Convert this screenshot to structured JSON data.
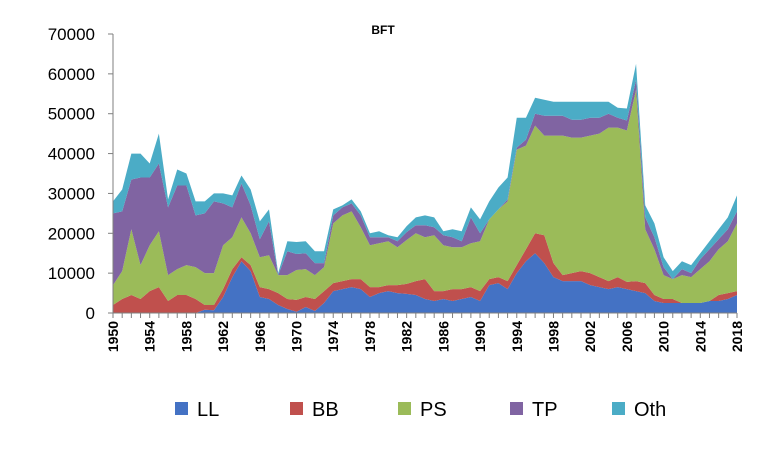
{
  "chart_data": {
    "type": "area",
    "stacked": true,
    "title": "BFT",
    "xlabel": "",
    "ylabel": "",
    "ylim": [
      0,
      70000
    ],
    "yticks": [
      0,
      10000,
      20000,
      30000,
      40000,
      50000,
      60000,
      70000
    ],
    "ytick_labels": [
      "0",
      "10000",
      "20000",
      "30000",
      "40000",
      "50000",
      "60000",
      "70000"
    ],
    "xlim": [
      1950,
      2018
    ],
    "xticks": [
      1950,
      1954,
      1958,
      1962,
      1966,
      1970,
      1974,
      1978,
      1982,
      1986,
      1990,
      1994,
      1998,
      2002,
      2006,
      2010,
      2014,
      2018
    ],
    "grid": false,
    "legend_position": "bottom",
    "x": [
      1950,
      1951,
      1952,
      1953,
      1954,
      1955,
      1956,
      1957,
      1958,
      1959,
      1960,
      1961,
      1962,
      1963,
      1964,
      1965,
      1966,
      1967,
      1968,
      1969,
      1970,
      1971,
      1972,
      1973,
      1974,
      1975,
      1976,
      1977,
      1978,
      1979,
      1980,
      1981,
      1982,
      1983,
      1984,
      1985,
      1986,
      1987,
      1988,
      1989,
      1990,
      1991,
      1992,
      1993,
      1994,
      1995,
      1996,
      1997,
      1998,
      1999,
      2000,
      2001,
      2002,
      2003,
      2004,
      2005,
      2006,
      2007,
      2008,
      2009,
      2010,
      2011,
      2012,
      2013,
      2014,
      2015,
      2016,
      2017,
      2018
    ],
    "series": [
      {
        "name": "LL",
        "color": "#4472C4",
        "values": [
          0,
          0,
          0,
          0,
          0,
          0,
          0,
          0,
          0,
          0,
          800,
          700,
          4000,
          9000,
          13000,
          10500,
          4000,
          3500,
          2000,
          1000,
          300,
          1500,
          500,
          2500,
          5500,
          6000,
          6500,
          6000,
          4000,
          5000,
          5500,
          5000,
          4800,
          4500,
          3500,
          3000,
          3500,
          3000,
          3500,
          4000,
          3000,
          7000,
          7500,
          6000,
          10000,
          13000,
          15000,
          12500,
          9000,
          8000,
          8000,
          8000,
          7000,
          6500,
          6000,
          6500,
          6000,
          5500,
          5000,
          3000,
          2500,
          2500,
          2500,
          2500,
          2500,
          3000,
          3000,
          3500,
          4500
        ]
      },
      {
        "name": "BB",
        "color": "#C0504D",
        "values": [
          2000,
          3500,
          4500,
          3500,
          5500,
          6500,
          3000,
          4500,
          4500,
          3500,
          1200,
          1300,
          2000,
          2000,
          1000,
          1500,
          2500,
          2500,
          3000,
          2500,
          3000,
          2500,
          3000,
          3000,
          2000,
          2000,
          2000,
          2500,
          2500,
          1500,
          1500,
          2000,
          2500,
          3500,
          5000,
          2500,
          2000,
          3000,
          2500,
          2500,
          2500,
          1500,
          1500,
          2000,
          2000,
          3000,
          5000,
          7000,
          3500,
          1500,
          2000,
          2500,
          3000,
          2500,
          2000,
          2500,
          1800,
          2500,
          2500,
          1500,
          1000,
          1000,
          0,
          0,
          0,
          0,
          1500,
          1500,
          1000
        ]
      },
      {
        "name": "PS",
        "color": "#9BBB59",
        "values": [
          5000,
          7000,
          16500,
          8500,
          11500,
          14000,
          6500,
          6500,
          7500,
          8000,
          8000,
          8000,
          11000,
          8000,
          10000,
          8000,
          7500,
          8500,
          4500,
          6000,
          7500,
          7000,
          6000,
          6000,
          15000,
          16500,
          17000,
          13000,
          10500,
          11000,
          11000,
          9500,
          11000,
          12000,
          10500,
          14000,
          11500,
          10500,
          10500,
          11000,
          12500,
          15000,
          17000,
          20000,
          29000,
          26000,
          27000,
          25000,
          32000,
          35000,
          34000,
          33500,
          34500,
          36000,
          38500,
          37500,
          38000,
          48000,
          13500,
          11500,
          6000,
          5000,
          7000,
          6500,
          8500,
          10000,
          11500,
          13000,
          17000
        ]
      },
      {
        "name": "TP",
        "color": "#8064A2",
        "values": [
          18000,
          15000,
          12500,
          22000,
          17000,
          17000,
          17000,
          21000,
          20000,
          13000,
          15000,
          18000,
          10500,
          7500,
          8500,
          7000,
          4500,
          8500,
          0,
          6000,
          4000,
          4000,
          3000,
          1000,
          2000,
          2000,
          2000,
          3000,
          2000,
          1500,
          1000,
          1500,
          2000,
          2000,
          3000,
          2000,
          2500,
          2500,
          1500,
          6500,
          2000,
          0,
          0,
          500,
          500,
          1500,
          3000,
          5000,
          5000,
          5000,
          4500,
          4500,
          4500,
          4000,
          3500,
          2500,
          2500,
          2500,
          3000,
          3000,
          2000,
          0,
          1500,
          1000,
          2500,
          3000,
          2500,
          3000,
          3000
        ]
      },
      {
        "name": "Oth",
        "color": "#4BACC6",
        "values": [
          3000,
          5500,
          6500,
          6000,
          3500,
          7500,
          2000,
          4000,
          3000,
          3500,
          3000,
          2000,
          2500,
          3000,
          2000,
          4000,
          4500,
          3000,
          500,
          2500,
          3000,
          3000,
          3000,
          3000,
          1500,
          500,
          1000,
          1000,
          1000,
          1500,
          500,
          1000,
          1500,
          2000,
          2500,
          2500,
          1000,
          2000,
          2500,
          2500,
          3500,
          4500,
          5500,
          5500,
          7500,
          5500,
          4000,
          4000,
          3500,
          3500,
          4500,
          4500,
          4000,
          4000,
          3000,
          2500,
          3000,
          4000,
          3000,
          3500,
          2500,
          2000,
          2000,
          2000,
          1500,
          2000,
          2500,
          3000,
          4000
        ]
      }
    ]
  }
}
